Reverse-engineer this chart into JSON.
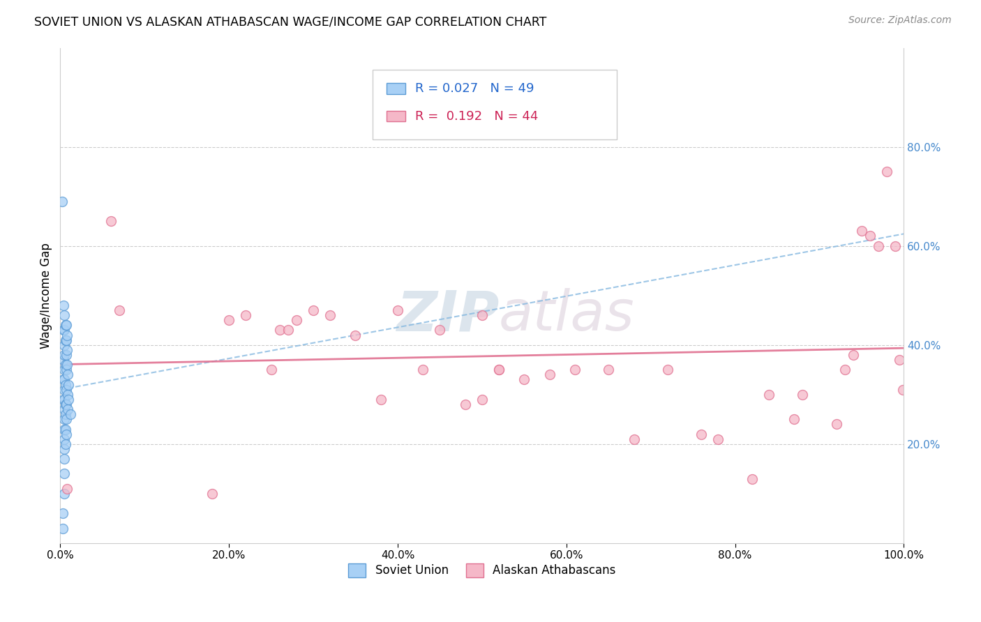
{
  "title": "SOVIET UNION VS ALASKAN ATHABASCAN WAGE/INCOME GAP CORRELATION CHART",
  "source": "Source: ZipAtlas.com",
  "ylabel": "Wage/Income Gap",
  "xlim": [
    0.0,
    1.0
  ],
  "ylim": [
    0.0,
    1.0
  ],
  "xticks": [
    0.0,
    0.2,
    0.4,
    0.6,
    0.8,
    1.0
  ],
  "xtick_labels": [
    "0.0%",
    "20.0%",
    "40.0%",
    "60.0%",
    "80.0%",
    "100.0%"
  ],
  "ytick_labels_right": [
    "20.0%",
    "40.0%",
    "60.0%",
    "80.0%"
  ],
  "yticks_right": [
    0.2,
    0.4,
    0.6,
    0.8
  ],
  "soviet_color": "#A8D0F5",
  "athabascan_color": "#F5B8C8",
  "soviet_edge": "#5B9BD5",
  "athabascan_edge": "#E07090",
  "trend_blue_color": "#85B8E0",
  "trend_pink_color": "#E07090",
  "R_soviet": 0.027,
  "N_soviet": 49,
  "R_athabascan": 0.192,
  "N_athabascan": 44,
  "legend_label_soviet": "Soviet Union",
  "legend_label_athabascan": "Alaskan Athabascans",
  "watermark_zip": "ZIP",
  "watermark_atlas": "atlas",
  "soviet_x": [
    0.002,
    0.003,
    0.003,
    0.004,
    0.004,
    0.004,
    0.004,
    0.004,
    0.005,
    0.005,
    0.005,
    0.005,
    0.005,
    0.005,
    0.005,
    0.005,
    0.005,
    0.005,
    0.005,
    0.005,
    0.005,
    0.005,
    0.005,
    0.005,
    0.006,
    0.006,
    0.006,
    0.006,
    0.006,
    0.006,
    0.006,
    0.006,
    0.007,
    0.007,
    0.007,
    0.007,
    0.007,
    0.007,
    0.007,
    0.007,
    0.008,
    0.008,
    0.008,
    0.009,
    0.009,
    0.009,
    0.01,
    0.01,
    0.012
  ],
  "soviet_y": [
    0.69,
    0.06,
    0.03,
    0.48,
    0.43,
    0.37,
    0.33,
    0.29,
    0.46,
    0.43,
    0.4,
    0.38,
    0.35,
    0.33,
    0.31,
    0.29,
    0.27,
    0.25,
    0.23,
    0.21,
    0.19,
    0.17,
    0.14,
    0.1,
    0.44,
    0.41,
    0.36,
    0.32,
    0.28,
    0.26,
    0.23,
    0.2,
    0.44,
    0.41,
    0.38,
    0.35,
    0.31,
    0.28,
    0.25,
    0.22,
    0.42,
    0.39,
    0.36,
    0.34,
    0.3,
    0.27,
    0.32,
    0.29,
    0.26
  ],
  "athabascan_x": [
    0.008,
    0.06,
    0.07,
    0.18,
    0.2,
    0.22,
    0.25,
    0.26,
    0.27,
    0.28,
    0.3,
    0.32,
    0.35,
    0.38,
    0.4,
    0.43,
    0.45,
    0.48,
    0.5,
    0.5,
    0.52,
    0.52,
    0.55,
    0.58,
    0.61,
    0.65,
    0.68,
    0.72,
    0.76,
    0.78,
    0.82,
    0.84,
    0.87,
    0.88,
    0.92,
    0.93,
    0.94,
    0.95,
    0.96,
    0.97,
    0.98,
    0.99,
    0.995,
    0.999
  ],
  "athabascan_y": [
    0.11,
    0.65,
    0.47,
    0.1,
    0.45,
    0.46,
    0.35,
    0.43,
    0.43,
    0.45,
    0.47,
    0.46,
    0.42,
    0.29,
    0.47,
    0.35,
    0.43,
    0.28,
    0.29,
    0.46,
    0.35,
    0.35,
    0.33,
    0.34,
    0.35,
    0.35,
    0.21,
    0.35,
    0.22,
    0.21,
    0.13,
    0.3,
    0.25,
    0.3,
    0.24,
    0.35,
    0.38,
    0.63,
    0.62,
    0.6,
    0.75,
    0.6,
    0.37,
    0.31
  ],
  "marker_size": 100
}
